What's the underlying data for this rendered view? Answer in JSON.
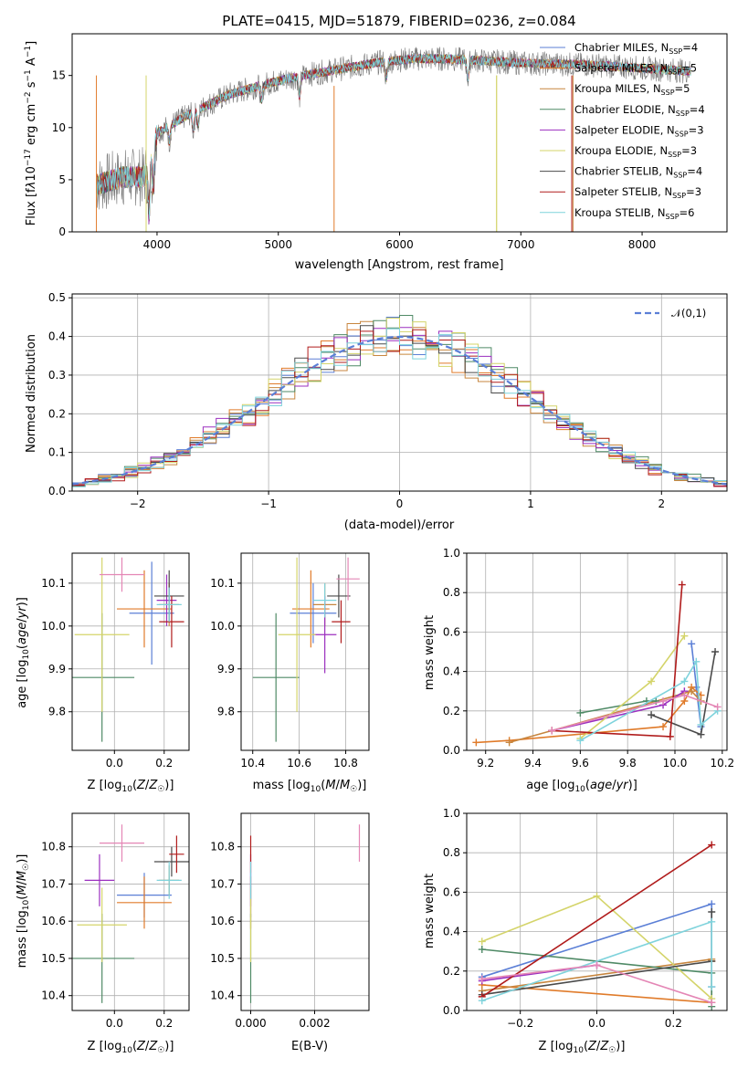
{
  "colors": {
    "Chabrier MILES": "#5b7fd6",
    "Salpeter MILES": "#e07b2a",
    "Kroupa MILES": "#c7863f",
    "Chabrier ELODIE": "#4f8a66",
    "Salpeter ELODIE": "#9b2fbf",
    "Kroupa ELODIE": "#d4d46a",
    "Chabrier STELIB": "#4a4a4a",
    "Salpeter STELIB": "#b01b1b",
    "Kroupa STELIB": "#7fd3dc",
    "extra_pink": "#e486b5",
    "gaussian": "#5b7fd6"
  },
  "chart_data": [
    {
      "type": "line",
      "title": "PLATE=0415, MJD=51879, FIBERID=0236, z=0.084",
      "xlabel": "wavelength [Angstrom, rest frame]",
      "ylabel": "Flux [fλ10⁻¹⁷ erg cm⁻² s⁻¹ A⁻¹]",
      "xlim": [
        3300,
        8700
      ],
      "ylim": [
        0,
        19
      ],
      "xticks": [
        "4000",
        "5000",
        "6000",
        "7000",
        "8000"
      ],
      "yticks": [
        "0",
        "5",
        "10",
        "15"
      ],
      "legend_position": "top-right",
      "spectrum_continuum": {
        "x": [
          3500,
          3700,
          3900,
          4000,
          4300,
          4600,
          4900,
          5200,
          5500,
          5800,
          6100,
          6400,
          6700,
          7000,
          7300,
          7600,
          8000,
          8400
        ],
        "y": [
          4.5,
          5.2,
          5.3,
          9.5,
          11.5,
          13.2,
          14.2,
          15.0,
          15.6,
          16.2,
          16.6,
          16.6,
          16.4,
          16.2,
          16.1,
          16.0,
          15.7,
          15.4
        ]
      },
      "series": [
        {
          "name": "Chabrier MILES",
          "nssp": "4"
        },
        {
          "name": "Salpeter MILES",
          "nssp": "5"
        },
        {
          "name": "Kroupa MILES",
          "nssp": "5"
        },
        {
          "name": "Chabrier ELODIE",
          "nssp": "4"
        },
        {
          "name": "Salpeter ELODIE",
          "nssp": "3"
        },
        {
          "name": "Kroupa ELODIE",
          "nssp": "3"
        },
        {
          "name": "Chabrier STELIB",
          "nssp": "4"
        },
        {
          "name": "Salpeter STELIB",
          "nssp": "3"
        },
        {
          "name": "Kroupa STELIB",
          "nssp": "6"
        }
      ]
    },
    {
      "type": "line",
      "xlabel": "(data-model)/error",
      "ylabel": "Normed distribution",
      "xlim": [
        -2.5,
        2.5
      ],
      "ylim": [
        0,
        0.51
      ],
      "xticks": [
        "−2",
        "−1",
        "0",
        "1",
        "2"
      ],
      "yticks": [
        "0.0",
        "0.1",
        "0.2",
        "0.3",
        "0.4",
        "0.5"
      ],
      "grid": true,
      "legend": "𝒩(0,1)",
      "legend_position": "top-right",
      "bin_width": 0.1
    },
    {
      "type": "scatter",
      "xlabel": "Z [log₁₀(Z/Z☉)]",
      "ylabel": "age  [log₁₀(age/yr)]",
      "xlim": [
        -0.17,
        0.3
      ],
      "ylim": [
        9.71,
        10.17
      ],
      "xticks": [
        "0.0",
        "0.2"
      ],
      "yticks": [
        "9.8",
        "9.9",
        "10.0",
        "10.1"
      ],
      "points": [
        {
          "series": "Chabrier MILES",
          "x": 0.15,
          "y": 10.03,
          "ex": 0.09,
          "ey": 0.12
        },
        {
          "series": "Salpeter MILES",
          "x": 0.12,
          "y": 10.04,
          "ex": 0.11,
          "ey": 0.09
        },
        {
          "series": "Kroupa MILES",
          "x": 0.22,
          "y": 10.05,
          "ex": 0.04,
          "ey": 0.05
        },
        {
          "series": "Chabrier ELODIE",
          "x": -0.05,
          "y": 9.88,
          "ex": 0.13,
          "ey": 0.15
        },
        {
          "series": "Salpeter ELODIE",
          "x": 0.21,
          "y": 10.06,
          "ex": 0.04,
          "ey": 0.06
        },
        {
          "series": "Kroupa ELODIE",
          "x": -0.05,
          "y": 9.98,
          "ex": 0.11,
          "ey": 0.18
        },
        {
          "series": "Chabrier STELIB",
          "x": 0.22,
          "y": 10.07,
          "ex": 0.06,
          "ey": 0.06
        },
        {
          "series": "Salpeter STELIB",
          "x": 0.23,
          "y": 10.01,
          "ex": 0.05,
          "ey": 0.06
        },
        {
          "series": "Kroupa STELIB",
          "x": 0.22,
          "y": 10.05,
          "ex": 0.05,
          "ey": 0.04
        },
        {
          "series": "extra_pink",
          "x": 0.03,
          "y": 10.12,
          "ex": 0.09,
          "ey": 0.04
        }
      ]
    },
    {
      "type": "scatter",
      "xlabel": "mass [log₁₀(M/M☉)]",
      "ylim": [
        9.71,
        10.17
      ],
      "xlim": [
        10.35,
        10.9
      ],
      "xticks": [
        "10.4",
        "10.6",
        "10.8"
      ],
      "yticks": [
        "9.8",
        "9.9",
        "10.0",
        "10.1"
      ],
      "points": [
        {
          "series": "Chabrier MILES",
          "x": 10.66,
          "y": 10.03,
          "ex": 0.1,
          "ey": 0.07
        },
        {
          "series": "Salpeter MILES",
          "x": 10.65,
          "y": 10.04,
          "ex": 0.08,
          "ey": 0.09
        },
        {
          "series": "Kroupa MILES",
          "x": 10.71,
          "y": 10.05,
          "ex": 0.05,
          "ey": 0.05
        },
        {
          "series": "Chabrier ELODIE",
          "x": 10.5,
          "y": 9.88,
          "ex": 0.1,
          "ey": 0.15
        },
        {
          "series": "Salpeter ELODIE",
          "x": 10.71,
          "y": 9.98,
          "ex": 0.05,
          "ey": 0.09
        },
        {
          "series": "Kroupa ELODIE",
          "x": 10.59,
          "y": 9.98,
          "ex": 0.08,
          "ey": 0.18
        },
        {
          "series": "Chabrier STELIB",
          "x": 10.77,
          "y": 10.07,
          "ex": 0.05,
          "ey": 0.05
        },
        {
          "series": "Salpeter STELIB",
          "x": 10.78,
          "y": 10.01,
          "ex": 0.04,
          "ey": 0.05
        },
        {
          "series": "Kroupa STELIB",
          "x": 10.71,
          "y": 10.06,
          "ex": 0.05,
          "ey": 0.04
        },
        {
          "series": "extra_pink",
          "x": 10.81,
          "y": 10.11,
          "ex": 0.05,
          "ey": 0.05
        }
      ]
    },
    {
      "type": "line",
      "xlabel": "age  [log₁₀(age/yr)]",
      "ylabel": "mass weight",
      "xlim": [
        9.12,
        10.22
      ],
      "ylim": [
        0,
        1.0
      ],
      "xticks": [
        "9.2",
        "9.4",
        "9.6",
        "9.8",
        "10.0",
        "10.2"
      ],
      "yticks": [
        "0.0",
        "0.2",
        "0.4",
        "0.6",
        "0.8",
        "1.0"
      ],
      "grid": true,
      "series": [
        {
          "name": "Chabrier MILES",
          "x": [
            10.07,
            10.11,
            10.09
          ],
          "y": [
            0.54,
            0.12,
            0.32
          ]
        },
        {
          "name": "Salpeter MILES",
          "x": [
            9.16,
            9.3,
            9.95,
            10.04,
            10.07,
            10.11
          ],
          "y": [
            0.04,
            0.05,
            0.12,
            0.25,
            0.32,
            0.28
          ]
        },
        {
          "name": "Kroupa MILES",
          "x": [
            9.3,
            9.48,
            10.07,
            10.11
          ],
          "y": [
            0.04,
            0.1,
            0.3,
            0.25
          ]
        },
        {
          "name": "Chabrier ELODIE",
          "x": [
            9.6,
            9.88,
            9.92
          ],
          "y": [
            0.19,
            0.25,
            0.25
          ]
        },
        {
          "name": "Salpeter ELODIE",
          "x": [
            9.48,
            9.95,
            10.04
          ],
          "y": [
            0.1,
            0.23,
            0.3
          ]
        },
        {
          "name": "Kroupa ELODIE",
          "x": [
            9.6,
            9.9,
            10.04
          ],
          "y": [
            0.06,
            0.35,
            0.58
          ]
        },
        {
          "name": "Chabrier STELIB",
          "x": [
            9.9,
            10.11,
            10.17
          ],
          "y": [
            0.18,
            0.08,
            0.5
          ]
        },
        {
          "name": "Salpeter STELIB",
          "x": [
            9.48,
            9.98,
            10.03
          ],
          "y": [
            0.1,
            0.07,
            0.84
          ]
        },
        {
          "name": "Kroupa STELIB",
          "x": [
            9.6,
            10.04,
            10.09,
            10.11,
            10.18
          ],
          "y": [
            0.05,
            0.35,
            0.45,
            0.13,
            0.2
          ]
        },
        {
          "name": "extra_pink",
          "x": [
            9.48,
            9.95,
            10.04,
            10.18
          ],
          "y": [
            0.1,
            0.25,
            0.28,
            0.22
          ]
        }
      ]
    },
    {
      "type": "scatter",
      "xlabel": "Z [log₁₀(Z/Z☉)]",
      "ylabel": "mass [log₁₀(M/M☉)]",
      "xlim": [
        -0.17,
        0.3
      ],
      "ylim": [
        10.36,
        10.89
      ],
      "xticks": [
        "0.0",
        "0.2"
      ],
      "yticks": [
        "10.4",
        "10.5",
        "10.6",
        "10.7",
        "10.8"
      ],
      "points": [
        {
          "series": "Chabrier MILES",
          "x": 0.12,
          "y": 10.67,
          "ex": 0.11,
          "ey": 0.06
        },
        {
          "series": "Salpeter MILES",
          "x": 0.12,
          "y": 10.65,
          "ex": 0.11,
          "ey": 0.07
        },
        {
          "series": "Kroupa MILES",
          "x": 0.22,
          "y": 10.71,
          "ex": 0.04,
          "ey": 0.04
        },
        {
          "series": "Chabrier ELODIE",
          "x": -0.05,
          "y": 10.5,
          "ex": 0.13,
          "ey": 0.12
        },
        {
          "series": "Salpeter ELODIE",
          "x": -0.06,
          "y": 10.71,
          "ex": 0.06,
          "ey": 0.07
        },
        {
          "series": "Kroupa ELODIE",
          "x": -0.05,
          "y": 10.59,
          "ex": 0.1,
          "ey": 0.1
        },
        {
          "series": "Chabrier STELIB",
          "x": 0.23,
          "y": 10.76,
          "ex": 0.07,
          "ey": 0.04
        },
        {
          "series": "Salpeter STELIB",
          "x": 0.25,
          "y": 10.78,
          "ex": 0.03,
          "ey": 0.05
        },
        {
          "series": "Kroupa STELIB",
          "x": 0.22,
          "y": 10.71,
          "ex": 0.05,
          "ey": 0.05
        },
        {
          "series": "extra_pink",
          "x": 0.03,
          "y": 10.81,
          "ex": 0.09,
          "ey": 0.05
        }
      ]
    },
    {
      "type": "scatter",
      "xlabel": "E(B-V)",
      "xlim": [
        -0.0003,
        0.0037
      ],
      "ylim": [
        10.36,
        10.89
      ],
      "xticks": [
        "0.000",
        "0.002"
      ],
      "yticks": [
        "10.4",
        "10.5",
        "10.6",
        "10.7",
        "10.8"
      ],
      "points": [
        {
          "series": "Chabrier MILES",
          "x": 0.0,
          "y": 10.67,
          "ey": 0.06
        },
        {
          "series": "Salpeter MILES",
          "x": 0.0,
          "y": 10.65,
          "ey": 0.07
        },
        {
          "series": "Chabrier ELODIE",
          "x": 0.0,
          "y": 10.5,
          "ey": 0.12
        },
        {
          "series": "Salpeter ELODIE",
          "x": 0.0,
          "y": 10.71,
          "ey": 0.07
        },
        {
          "series": "Kroupa ELODIE",
          "x": 0.0,
          "y": 10.59,
          "ey": 0.1
        },
        {
          "series": "Salpeter STELIB",
          "x": 0.0,
          "y": 10.78,
          "ey": 0.05
        },
        {
          "series": "Kroupa STELIB",
          "x": 0.0,
          "y": 10.71,
          "ey": 0.05
        },
        {
          "series": "extra_pink",
          "x": 0.0034,
          "y": 10.81,
          "ey": 0.05
        }
      ]
    },
    {
      "type": "line",
      "xlabel": "Z [log₁₀(Z/Z☉)]",
      "ylabel": "mass weight",
      "xlim": [
        -0.34,
        0.34
      ],
      "ylim": [
        0,
        1.0
      ],
      "xticks": [
        "−0.2",
        "0.0",
        "0.2"
      ],
      "yticks": [
        "0.0",
        "0.2",
        "0.4",
        "0.6",
        "0.8",
        "1.0"
      ],
      "grid": true,
      "series": [
        {
          "name": "Chabrier MILES",
          "x": [
            -0.3,
            0.3,
            0.3
          ],
          "y": [
            0.17,
            0.54,
            0.12
          ]
        },
        {
          "name": "Salpeter MILES",
          "x": [
            -0.3,
            0.3,
            0.3
          ],
          "y": [
            0.13,
            0.04,
            0.25
          ]
        },
        {
          "name": "Kroupa MILES",
          "x": [
            -0.3,
            0.3
          ],
          "y": [
            0.1,
            0.26
          ]
        },
        {
          "name": "Chabrier ELODIE",
          "x": [
            -0.3,
            0.3,
            0.3
          ],
          "y": [
            0.31,
            0.19,
            0.02
          ]
        },
        {
          "name": "Salpeter ELODIE",
          "x": [
            -0.3,
            0.0
          ],
          "y": [
            0.15,
            0.23
          ]
        },
        {
          "name": "Kroupa ELODIE",
          "x": [
            -0.3,
            0.0,
            0.3
          ],
          "y": [
            0.35,
            0.58,
            0.06
          ]
        },
        {
          "name": "Chabrier STELIB",
          "x": [
            -0.3,
            0.3,
            0.3
          ],
          "y": [
            0.08,
            0.25,
            0.5
          ]
        },
        {
          "name": "Salpeter STELIB",
          "x": [
            -0.3,
            0.3
          ],
          "y": [
            0.07,
            0.84
          ]
        },
        {
          "name": "Kroupa STELIB",
          "x": [
            -0.3,
            0.3,
            0.3
          ],
          "y": [
            0.05,
            0.45,
            0.12
          ]
        },
        {
          "name": "extra_pink",
          "x": [
            -0.3,
            0.0,
            0.3
          ],
          "y": [
            0.16,
            0.23,
            0.04
          ]
        }
      ]
    }
  ]
}
